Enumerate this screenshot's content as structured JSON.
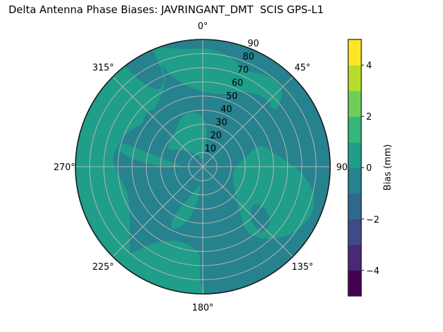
{
  "chart_data": {
    "type": "heatmap",
    "subtype": "polar_filled_contour",
    "title": "Delta Antenna Phase Biases: JAVRINGANT_DMT  SCIS GPS-L1",
    "angular_tick_labels": [
      "0°",
      "45°",
      "90",
      "135°",
      "180°",
      "225°",
      "270°",
      "315°"
    ],
    "angular_tick_degrees": [
      0,
      45,
      90,
      135,
      180,
      225,
      270,
      315
    ],
    "radial_tick_labels": [
      "10",
      "20",
      "30",
      "40",
      "50",
      "60",
      "70",
      "80",
      "90"
    ],
    "radial_tick_values": [
      10,
      20,
      30,
      40,
      50,
      60,
      70,
      80,
      90
    ],
    "radial_max": 90,
    "radial_label_angle_deg": 22.5,
    "grid": "on",
    "grid_color": "#b5b5b5",
    "outline_color": "#1a1a1a",
    "colorbar": {
      "label": "Bias (mm)",
      "tick_labels": [
        "4",
        "2",
        "0",
        "−2",
        "−4"
      ],
      "tick_values": [
        4,
        2,
        0,
        -2,
        -4
      ],
      "range": [
        -5,
        5
      ],
      "n_segments": 10,
      "colors_bottom_to_top": [
        "#440154",
        "#482878",
        "#3e4a89",
        "#31688e",
        "#26828e",
        "#1f9e89",
        "#35b779",
        "#6ece58",
        "#b5de2b",
        "#fde725"
      ]
    },
    "fill_bins_visible": {
      "negative_bin": {
        "range_mm": [
          -1,
          0
        ],
        "color": "#26828e"
      },
      "positive_bin": {
        "range_mm": [
          0,
          1
        ],
        "color": "#1f9e89"
      }
    },
    "base_color": "#26828e",
    "positive_color": "#1f9e89",
    "green_regions": [
      {
        "name": "left-outer-mass",
        "points": [
          [
            215,
            92
          ],
          [
            225,
            92
          ],
          [
            240,
            92
          ],
          [
            255,
            92
          ],
          [
            270,
            92
          ],
          [
            285,
            92
          ],
          [
            300,
            92
          ],
          [
            315,
            92
          ],
          [
            330,
            92
          ],
          [
            338,
            92
          ],
          [
            338,
            70
          ],
          [
            332,
            60
          ],
          [
            324,
            55
          ],
          [
            316,
            52
          ],
          [
            308,
            52
          ],
          [
            300,
            55
          ],
          [
            292,
            60
          ],
          [
            284,
            62
          ],
          [
            276,
            64
          ],
          [
            268,
            62
          ],
          [
            260,
            58
          ],
          [
            252,
            56
          ],
          [
            244,
            58
          ],
          [
            236,
            62
          ],
          [
            228,
            70
          ],
          [
            220,
            80
          ]
        ]
      },
      {
        "name": "top-band",
        "points": [
          [
            -26,
            92
          ],
          [
            -22,
            76
          ],
          [
            -16,
            63
          ],
          [
            -8,
            56
          ],
          [
            0,
            53
          ],
          [
            10,
            52
          ],
          [
            20,
            55
          ],
          [
            28,
            60
          ],
          [
            36,
            64
          ],
          [
            44,
            66
          ],
          [
            50,
            64
          ],
          [
            53,
            65
          ],
          [
            50,
            72
          ],
          [
            46,
            78
          ],
          [
            40,
            80
          ],
          [
            32,
            78
          ],
          [
            26,
            74
          ],
          [
            18,
            78
          ],
          [
            10,
            82
          ],
          [
            2,
            84
          ],
          [
            -8,
            84
          ],
          [
            -16,
            87
          ],
          [
            -22,
            92
          ]
        ]
      },
      {
        "name": "right-mass",
        "points": [
          [
            70,
            40
          ],
          [
            78,
            30
          ],
          [
            86,
            25
          ],
          [
            96,
            22
          ],
          [
            106,
            22
          ],
          [
            116,
            24
          ],
          [
            126,
            28
          ],
          [
            134,
            33
          ],
          [
            140,
            40
          ],
          [
            145,
            50
          ],
          [
            146,
            56
          ],
          [
            143,
            63
          ],
          [
            137,
            70
          ],
          [
            130,
            77
          ],
          [
            122,
            82
          ],
          [
            112,
            85
          ],
          [
            102,
            80
          ],
          [
            94,
            71
          ],
          [
            88,
            62
          ],
          [
            82,
            54
          ],
          [
            75,
            48
          ],
          [
            70,
            44
          ]
        ]
      },
      {
        "name": "bottom-band",
        "points": [
          [
            178,
            92
          ],
          [
            190,
            92
          ],
          [
            202,
            92
          ],
          [
            214,
            92
          ],
          [
            222,
            92
          ],
          [
            220,
            80
          ],
          [
            214,
            66
          ],
          [
            206,
            58
          ],
          [
            196,
            55
          ],
          [
            187,
            57
          ],
          [
            181,
            64
          ],
          [
            178,
            75
          ]
        ]
      },
      {
        "name": "west-bridge",
        "points": [
          [
            274,
            16
          ],
          [
            280,
            26
          ],
          [
            284,
            38
          ],
          [
            286,
            50
          ],
          [
            287,
            60
          ],
          [
            281,
            62
          ],
          [
            276,
            50
          ],
          [
            272,
            36
          ],
          [
            270,
            24
          ],
          [
            271,
            16
          ]
        ]
      },
      {
        "name": "central-blob",
        "points": [
          [
            295,
            28
          ],
          [
            303,
            22
          ],
          [
            312,
            17
          ],
          [
            322,
            13
          ],
          [
            332,
            10
          ],
          [
            342,
            7
          ],
          [
            352,
            5
          ],
          [
            2,
            5
          ],
          [
            8,
            12
          ],
          [
            8,
            22
          ],
          [
            4,
            32
          ],
          [
            356,
            38
          ],
          [
            346,
            40
          ],
          [
            336,
            38
          ],
          [
            326,
            33
          ],
          [
            315,
            30
          ],
          [
            304,
            29
          ]
        ]
      },
      {
        "name": "sw-hook",
        "points": [
          [
            190,
            12
          ],
          [
            198,
            18
          ],
          [
            206,
            28
          ],
          [
            211,
            40
          ],
          [
            208,
            50
          ],
          [
            200,
            46
          ],
          [
            193,
            36
          ],
          [
            188,
            24
          ],
          [
            186,
            15
          ]
        ]
      }
    ],
    "dark_regions": [
      {
        "name": "notch-northwest",
        "points": [
          [
            322,
            93
          ],
          [
            323,
            80
          ],
          [
            326,
            68
          ],
          [
            331,
            62
          ],
          [
            336,
            66
          ],
          [
            337,
            76
          ],
          [
            337,
            86
          ],
          [
            336,
            93
          ]
        ]
      },
      {
        "name": "hole-west-upper",
        "points": [
          [
            297,
            30
          ],
          [
            308,
            30
          ],
          [
            318,
            36
          ],
          [
            324,
            44
          ],
          [
            322,
            53
          ],
          [
            312,
            56
          ],
          [
            302,
            50
          ],
          [
            295,
            40
          ]
        ]
      },
      {
        "name": "hole-southwest",
        "points": [
          [
            230,
            64
          ],
          [
            240,
            60
          ],
          [
            250,
            54
          ],
          [
            257,
            44
          ],
          [
            258,
            30
          ],
          [
            252,
            18
          ],
          [
            243,
            12
          ],
          [
            234,
            18
          ],
          [
            228,
            30
          ],
          [
            225,
            45
          ],
          [
            226,
            56
          ]
        ]
      },
      {
        "name": "droplet-south",
        "points": [
          [
            157,
            92
          ],
          [
            162,
            92
          ],
          [
            170,
            92
          ],
          [
            178,
            92
          ],
          [
            181,
            84
          ],
          [
            182,
            72
          ],
          [
            181,
            58
          ],
          [
            178,
            45
          ],
          [
            173,
            33
          ],
          [
            166,
            26
          ],
          [
            158,
            30
          ],
          [
            152,
            42
          ],
          [
            149,
            56
          ],
          [
            150,
            70
          ],
          [
            153,
            82
          ]
        ]
      },
      {
        "name": "hole-southeast",
        "points": [
          [
            128,
            44
          ],
          [
            136,
            48
          ],
          [
            140,
            56
          ],
          [
            137,
            64
          ],
          [
            129,
            62
          ],
          [
            124,
            54
          ],
          [
            124,
            47
          ]
        ]
      }
    ]
  }
}
